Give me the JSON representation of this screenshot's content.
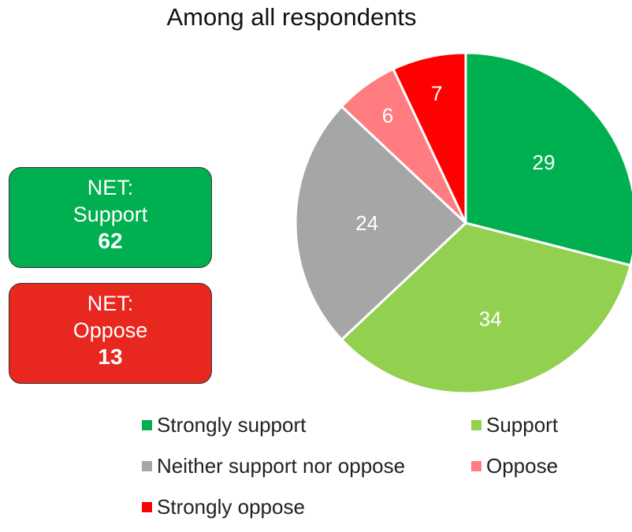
{
  "chart_data": {
    "type": "pie",
    "title": "Among all respondents",
    "slices": [
      {
        "label": "Strongly support",
        "value": 29,
        "color": "#00b050"
      },
      {
        "label": "Support",
        "value": 34,
        "color": "#92d050"
      },
      {
        "label": "Neither support nor oppose",
        "value": 24,
        "color": "#a6a6a6"
      },
      {
        "label": "Oppose",
        "value": 6,
        "color": "#ff7c80"
      },
      {
        "label": "Strongly oppose",
        "value": 7,
        "color": "#ff0000"
      }
    ],
    "legend_position": "bottom"
  },
  "net": {
    "support": {
      "label_line1": "NET:",
      "label_line2": "Support",
      "value": "62",
      "color": "#00b050"
    },
    "oppose": {
      "label_line1": "NET:",
      "label_line2": "Oppose",
      "value": "13",
      "color": "#e8281e"
    }
  }
}
